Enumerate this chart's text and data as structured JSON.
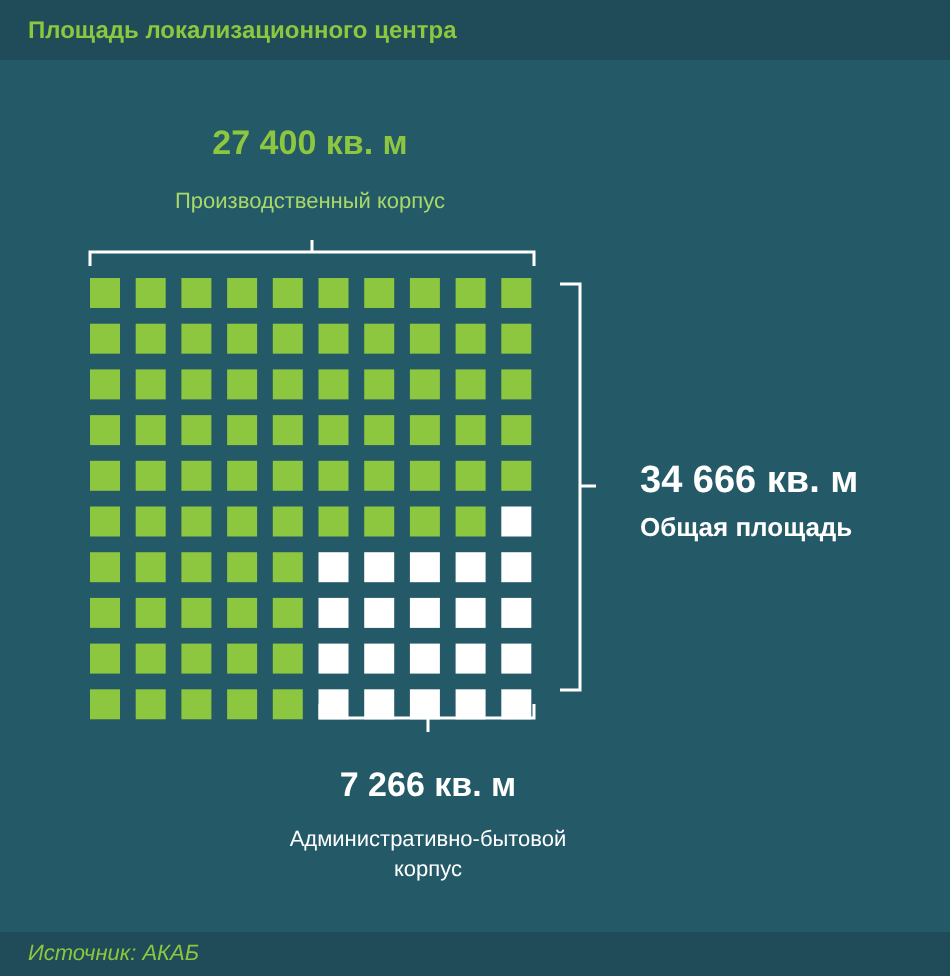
{
  "chart_data": {
    "type": "other",
    "title": "Площадь локализационного центра",
    "categories": [
      "Производственный корпус",
      "Административно-бытовой корпус"
    ],
    "values": [
      27400,
      7266
    ],
    "colors": [
      "#8dc63f",
      "#ffffff"
    ],
    "value_labels": [
      "27 400 кв. м",
      "7 266 кв. м"
    ],
    "annotations": [
      "34 666 кв. м",
      "Общая площадь",
      "Источник: АКАБ"
    ]
  }
}
